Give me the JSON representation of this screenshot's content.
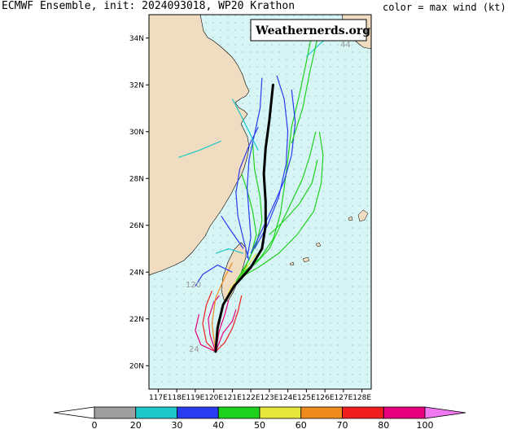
{
  "header": {
    "title": "ECMWF Ensemble, init: 2024093018, WP20 Krathon",
    "legend_label": "color = max wind (kt)"
  },
  "watermark": "Weathernerds.org",
  "map": {
    "lon_range": [
      116.5,
      128.5
    ],
    "lat_range": [
      19,
      35
    ],
    "lon_ticks": [
      "117E",
      "118E",
      "119E",
      "120E",
      "121E",
      "122E",
      "123E",
      "124E",
      "125E",
      "126E",
      "127E",
      "128E"
    ],
    "lat_ticks": [
      "20N",
      "22N",
      "24N",
      "26N",
      "28N",
      "30N",
      "32N",
      "34N"
    ],
    "land_color": "#f0dcc0",
    "ocean_color": "#d8f5f5",
    "annotations": [
      "120",
      "24",
      "44"
    ]
  },
  "colorbar": {
    "ticks": [
      "0",
      "20",
      "30",
      "40",
      "50",
      "60",
      "70",
      "80",
      "100"
    ],
    "colors": [
      "#ffffff",
      "#9e9e9e",
      "#1ec8c8",
      "#2a3cf0",
      "#1ed21e",
      "#e6e63c",
      "#f08c1e",
      "#f01e1e",
      "#e6007e",
      "#f078f0"
    ]
  },
  "chart_data": {
    "type": "line",
    "description_units": "lon/lat degrees",
    "mean_track": [
      [
        120.1,
        20.6
      ],
      [
        120.2,
        21.6
      ],
      [
        120.5,
        22.6
      ],
      [
        121.1,
        23.4
      ],
      [
        122.0,
        24.2
      ],
      [
        122.6,
        25.0
      ],
      [
        122.8,
        26.0
      ],
      [
        122.8,
        27.0
      ],
      [
        122.7,
        28.2
      ],
      [
        122.8,
        29.3
      ],
      [
        123.0,
        30.5
      ],
      [
        123.2,
        32.0
      ]
    ],
    "members": [
      {
        "color": "#e6007e",
        "points": [
          [
            120.1,
            20.6
          ],
          [
            119.8,
            21.3
          ],
          [
            119.7,
            22.0
          ],
          [
            120.0,
            22.7
          ],
          [
            120.3,
            23.0
          ]
        ]
      },
      {
        "color": "#e6007e",
        "points": [
          [
            120.1,
            20.6
          ],
          [
            120.3,
            21.5
          ],
          [
            120.6,
            22.2
          ],
          [
            120.8,
            22.8
          ]
        ]
      },
      {
        "color": "#f01e1e",
        "points": [
          [
            120.1,
            20.6
          ],
          [
            119.6,
            21.0
          ],
          [
            119.4,
            21.8
          ],
          [
            119.6,
            22.6
          ],
          [
            119.9,
            23.2
          ]
        ]
      },
      {
        "color": "#e6007e",
        "points": [
          [
            120.1,
            20.6
          ],
          [
            120.5,
            21.4
          ],
          [
            121.0,
            21.9
          ],
          [
            121.2,
            22.4
          ]
        ]
      },
      {
        "color": "#f08c1e",
        "points": [
          [
            120.1,
            20.6
          ],
          [
            120.2,
            21.8
          ],
          [
            120.6,
            22.8
          ],
          [
            121.2,
            23.6
          ],
          [
            121.8,
            24.3
          ]
        ]
      },
      {
        "color": "#f08c1e",
        "points": [
          [
            120.1,
            20.6
          ],
          [
            119.9,
            21.8
          ],
          [
            120.1,
            22.9
          ],
          [
            120.6,
            23.8
          ],
          [
            121.0,
            24.4
          ]
        ]
      },
      {
        "color": "#e6e63c",
        "points": [
          [
            120.4,
            22.4
          ],
          [
            120.9,
            23.3
          ],
          [
            121.6,
            24.0
          ],
          [
            122.3,
            24.8
          ]
        ]
      },
      {
        "color": "#1ed21e",
        "points": [
          [
            121.2,
            23.6
          ],
          [
            121.8,
            24.4
          ],
          [
            122.3,
            25.2
          ],
          [
            122.6,
            26.2
          ],
          [
            122.5,
            27.2
          ],
          [
            122.2,
            28.4
          ],
          [
            122.1,
            29.5
          ]
        ]
      },
      {
        "color": "#1ed21e",
        "points": [
          [
            121.4,
            23.8
          ],
          [
            122.3,
            24.4
          ],
          [
            123.0,
            25.0
          ],
          [
            123.6,
            26.0
          ],
          [
            124.2,
            27.0
          ],
          [
            124.8,
            28.0
          ],
          [
            125.2,
            29.0
          ],
          [
            125.5,
            30.0
          ]
        ]
      },
      {
        "color": "#1ed21e",
        "points": [
          [
            121.6,
            24.0
          ],
          [
            122.5,
            24.6
          ],
          [
            123.2,
            25.4
          ],
          [
            123.6,
            26.5
          ],
          [
            123.8,
            27.6
          ],
          [
            124.0,
            28.8
          ],
          [
            124.2,
            30.2
          ],
          [
            124.6,
            31.5
          ],
          [
            125.0,
            33.0
          ],
          [
            125.3,
            34.2
          ]
        ]
      },
      {
        "color": "#1ed21e",
        "points": [
          [
            121.5,
            23.9
          ],
          [
            122.0,
            24.7
          ],
          [
            122.3,
            25.6
          ],
          [
            122.1,
            26.6
          ],
          [
            121.8,
            27.5
          ],
          [
            121.5,
            28.2
          ]
        ]
      },
      {
        "color": "#1ed21e",
        "points": [
          [
            121.3,
            23.7
          ],
          [
            122.4,
            24.2
          ],
          [
            123.5,
            24.8
          ],
          [
            124.5,
            25.6
          ],
          [
            125.4,
            26.6
          ],
          [
            125.8,
            27.8
          ],
          [
            125.9,
            29.0
          ],
          [
            125.7,
            30.0
          ]
        ]
      },
      {
        "color": "#2a3cf0",
        "points": [
          [
            121.8,
            24.6
          ],
          [
            122.0,
            25.5
          ],
          [
            121.9,
            26.5
          ],
          [
            121.8,
            27.6
          ],
          [
            121.9,
            28.8
          ],
          [
            122.2,
            29.9
          ],
          [
            122.5,
            31.0
          ],
          [
            122.6,
            32.3
          ]
        ]
      },
      {
        "color": "#2a3cf0",
        "points": [
          [
            122.0,
            24.8
          ],
          [
            122.6,
            25.8
          ],
          [
            123.2,
            26.8
          ],
          [
            123.8,
            27.9
          ],
          [
            124.2,
            29.0
          ],
          [
            124.4,
            30.4
          ],
          [
            124.2,
            31.8
          ]
        ]
      },
      {
        "color": "#2a3cf0",
        "points": [
          [
            121.9,
            24.5
          ],
          [
            121.6,
            25.4
          ],
          [
            121.3,
            26.4
          ],
          [
            121.2,
            27.4
          ],
          [
            121.4,
            28.4
          ],
          [
            121.9,
            29.4
          ],
          [
            122.4,
            30.2
          ]
        ]
      },
      {
        "color": "#2a3cf0",
        "points": [
          [
            122.2,
            25.0
          ],
          [
            122.9,
            26.0
          ],
          [
            123.5,
            27.2
          ],
          [
            123.9,
            28.6
          ],
          [
            124.0,
            30.0
          ],
          [
            123.8,
            31.4
          ],
          [
            123.4,
            32.4
          ]
        ]
      },
      {
        "color": "#2a3cf0",
        "points": [
          [
            121.0,
            24.0
          ],
          [
            120.2,
            24.3
          ],
          [
            119.4,
            23.9
          ],
          [
            119.0,
            23.4
          ]
        ]
      },
      {
        "color": "#2a3cf0",
        "points": [
          [
            121.6,
            25.0
          ],
          [
            120.9,
            25.8
          ],
          [
            120.4,
            26.4
          ]
        ]
      },
      {
        "color": "#1ec8c8",
        "points": [
          [
            122.4,
            29.2
          ],
          [
            121.9,
            30.0
          ],
          [
            121.4,
            30.8
          ],
          [
            121.0,
            31.4
          ]
        ]
      },
      {
        "color": "#1ec8c8",
        "points": [
          [
            120.4,
            29.6
          ],
          [
            119.2,
            29.2
          ],
          [
            118.1,
            28.9
          ]
        ]
      },
      {
        "color": "#1ec8c8",
        "points": [
          [
            121.6,
            24.8
          ],
          [
            120.8,
            25.0
          ],
          [
            120.1,
            24.8
          ]
        ]
      },
      {
        "color": "#1ec8c8",
        "points": [
          [
            125.0,
            33.2
          ],
          [
            125.8,
            33.8
          ],
          [
            126.6,
            34.3
          ],
          [
            127.5,
            34.6
          ]
        ]
      },
      {
        "color": "#1ed21e",
        "points": [
          [
            124.2,
            29.5
          ],
          [
            124.8,
            31.0
          ],
          [
            125.2,
            32.6
          ],
          [
            125.6,
            34.0
          ],
          [
            126.4,
            34.6
          ]
        ]
      },
      {
        "color": "#1ed21e",
        "points": [
          [
            123.0,
            25.6
          ],
          [
            123.8,
            26.2
          ],
          [
            124.6,
            26.9
          ],
          [
            125.3,
            27.8
          ],
          [
            125.6,
            28.8
          ]
        ]
      },
      {
        "color": "#e6007e",
        "points": [
          [
            120.1,
            20.6
          ],
          [
            119.3,
            20.9
          ],
          [
            119.0,
            21.5
          ],
          [
            119.2,
            22.2
          ]
        ]
      },
      {
        "color": "#f01e1e",
        "points": [
          [
            120.1,
            20.6
          ],
          [
            120.6,
            21.0
          ],
          [
            121.0,
            21.6
          ],
          [
            121.3,
            22.3
          ],
          [
            121.5,
            23.0
          ]
        ]
      }
    ]
  }
}
